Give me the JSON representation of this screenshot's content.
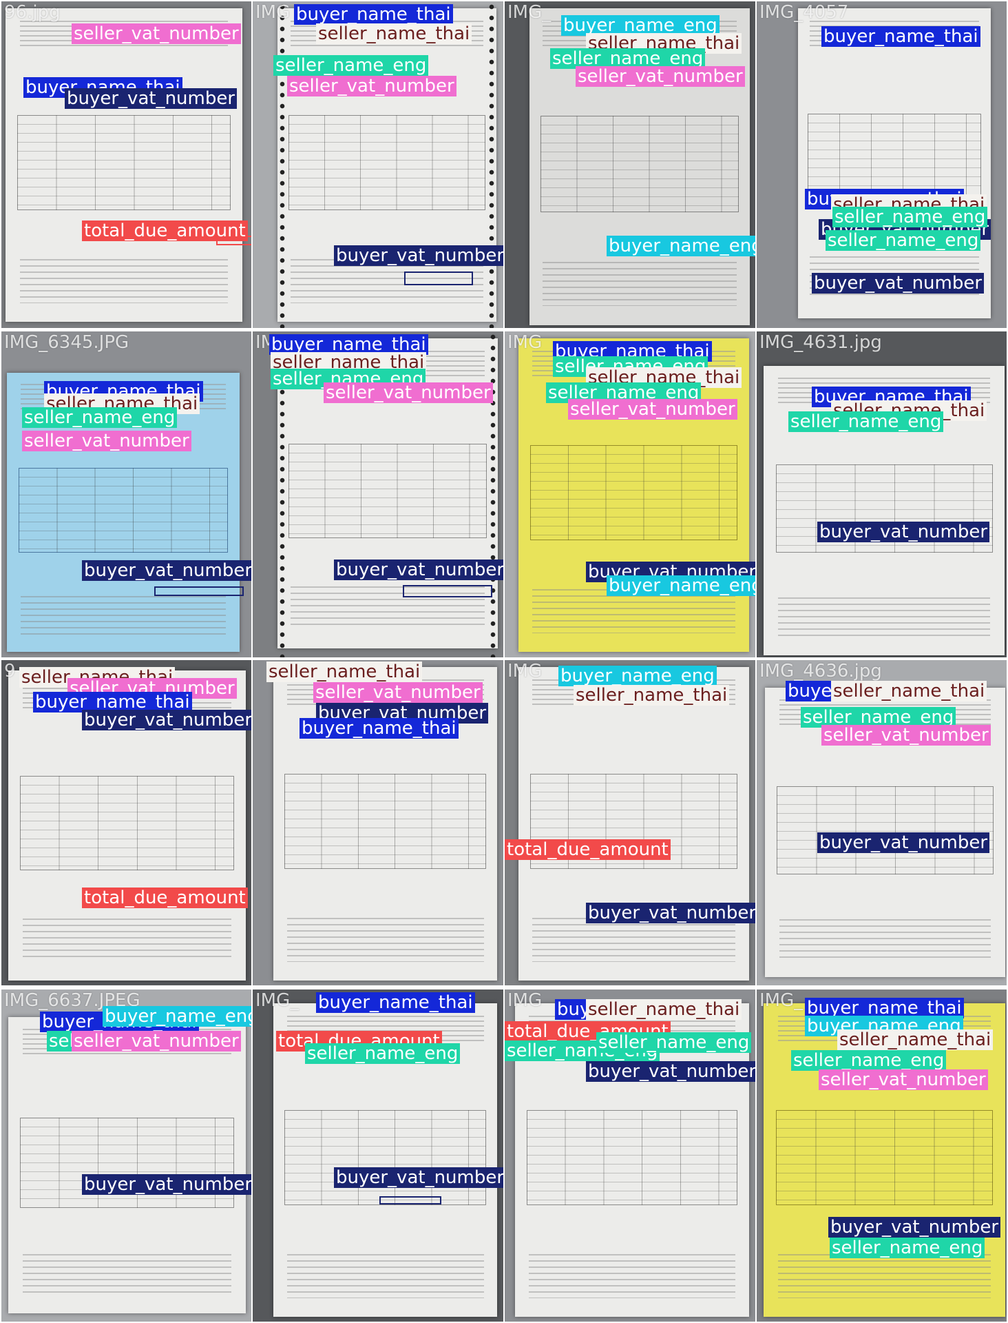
{
  "class_colors": {
    "buyer_name_thai": "#1428d8",
    "buyer_vat_number": "#1a2470",
    "seller_vat_number": "#f06ed0",
    "seller_name_thai": "#f4f2ee",
    "seller_name_eng": "#1fd6a8",
    "buyer_name_eng": "#18c8e0",
    "total_due_amount": "#f24a4a"
  },
  "tiles": [
    {
      "filename": "96.jpg",
      "doc_color": "white",
      "labels": [
        "seller_vat_number",
        "buyer_name_thai",
        "buyer_vat_number",
        "total_due_amount"
      ]
    },
    {
      "filename": "IMG",
      "doc_color": "white",
      "labels": [
        "buyer_name_thai",
        "seller_name_thai",
        "seller_name_eng",
        "seller_vat_number",
        "buyer_vat_number"
      ]
    },
    {
      "filename": "IMG_",
      "doc_color": "grey",
      "labels": [
        "buyer_name_eng",
        "seller_name_thai",
        "seller_name_eng",
        "seller_vat_number",
        "buyer_name_eng"
      ]
    },
    {
      "filename": "IMG_4057",
      "doc_color": "white",
      "labels": [
        "buyer_name_thai",
        "buyer_name_thai",
        "seller_name_thai",
        "buyer_vat_number",
        "seller_name_eng",
        "seller_name_eng",
        "buyer_vat_number"
      ]
    },
    {
      "filename": "IMG_6345.JPG",
      "doc_color": "blue",
      "labels": [
        "buyer_name_thai",
        "seller_name_thai",
        "seller_name_eng",
        "seller_vat_number",
        "buyer_vat_number"
      ]
    },
    {
      "filename": "IM",
      "doc_color": "white",
      "labels": [
        "buyer_name_thai",
        "seller_name_thai",
        "seller_name_eng",
        "seller_vat_number",
        "buyer_vat_number"
      ]
    },
    {
      "filename": "IMG",
      "doc_color": "yellow",
      "labels": [
        "buyer_name_thai",
        "seller_name_eng",
        "seller_name_thai",
        "seller_name_eng",
        "seller_vat_number",
        "buyer_vat_number",
        "buyer_name_eng"
      ]
    },
    {
      "filename": "IMG_4631.jpg",
      "doc_color": "white",
      "labels": [
        "buyer_name_thai",
        "seller_name_thai",
        "seller_name_eng",
        "buyer_vat_number"
      ]
    },
    {
      "filename": "9",
      "doc_color": "white",
      "labels": [
        "seller_name_thai",
        "seller_vat_number",
        "buyer_name_thai",
        "buyer_vat_number",
        "total_due_amount"
      ]
    },
    {
      "filename": "",
      "doc_color": "white",
      "labels": [
        "seller_name_thai",
        "seller_vat_number",
        "buyer_vat_number",
        "buyer_name_thai"
      ]
    },
    {
      "filename": "IMG",
      "doc_color": "white",
      "labels": [
        "buyer_name_eng",
        "seller_name_thai",
        "total_due_amount",
        "buyer_vat_number"
      ]
    },
    {
      "filename": "IMG_4636.jpg",
      "doc_color": "white",
      "labels": [
        "buyer_name_thai",
        "seller_name_thai",
        "seller_name_eng",
        "seller_vat_number",
        "buyer_vat_number"
      ]
    },
    {
      "filename": "IMG_6637.JPEG",
      "doc_color": "white",
      "labels": [
        "buyer_name_thai",
        "buyer_name_eng",
        "seller_name_eng",
        "seller_vat_number",
        "buyer_vat_number"
      ]
    },
    {
      "filename": "IMG_",
      "doc_color": "white",
      "labels": [
        "buyer_name_thai",
        "total_due_amount",
        "seller_name_eng",
        "buyer_vat_number"
      ]
    },
    {
      "filename": "IMG",
      "doc_color": "white",
      "labels": [
        "buyer_name_thai",
        "seller_name_thai",
        "seller_name_thai",
        "total_due_amount",
        "seller_name_eng",
        "seller_name_eng",
        "buyer_vat_number"
      ]
    },
    {
      "filename": "IMG_",
      "doc_color": "yellow",
      "labels": [
        "buyer_name_thai",
        "buyer_name_eng",
        "seller_name_thai",
        "seller_name_eng",
        "seller_vat_number",
        "buyer_vat_number",
        "seller_name_eng"
      ]
    }
  ]
}
